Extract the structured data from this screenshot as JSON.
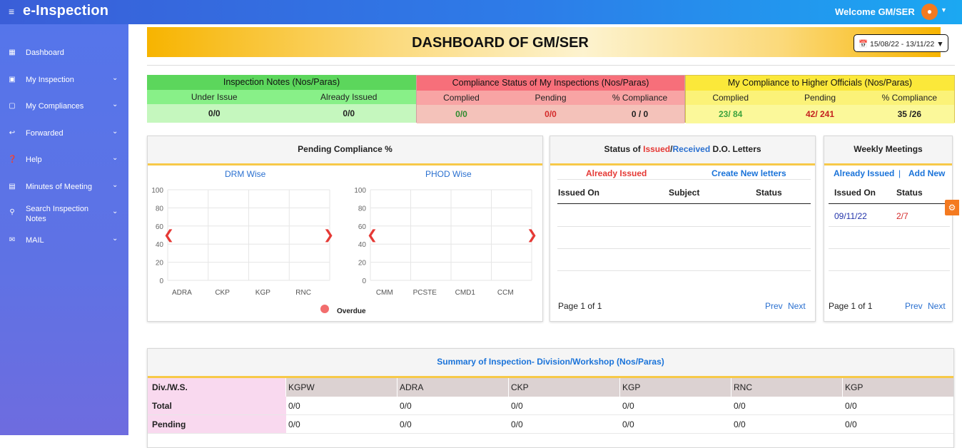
{
  "topbar": {
    "brand": "e-Inspection",
    "welcome": "Welcome  GM/SER"
  },
  "sidebar": {
    "items": [
      {
        "icon": "dashboard-icon",
        "label": "Dashboard"
      },
      {
        "icon": "inspection-icon",
        "label": "My Inspection"
      },
      {
        "icon": "clipboard-icon",
        "label": "My Compliances"
      },
      {
        "icon": "forward-icon",
        "label": "Forwarded"
      },
      {
        "icon": "help-icon",
        "label": "Help"
      },
      {
        "icon": "document-icon",
        "label": "Minutes of Meeting"
      },
      {
        "icon": "search-icon",
        "label": "Search Inspection Notes"
      },
      {
        "icon": "mail-icon",
        "label": "MAIL"
      }
    ]
  },
  "dashboard": {
    "title": "DASHBOARD OF GM/SER",
    "date_range": "15/08/22 - 13/11/22"
  },
  "stats": {
    "inspection_notes": {
      "title": "Inspection Notes (Nos/Paras)",
      "cols": [
        "Under Issue",
        "Already Issued"
      ],
      "values": [
        "0/0",
        "0/0"
      ]
    },
    "compliance_status": {
      "title": "Compliance Status of My Inspections (Nos/Paras)",
      "cols": [
        "Complied",
        "Pending",
        "% Compliance"
      ],
      "values": [
        "0/0",
        "0/0",
        "0 / 0"
      ]
    },
    "my_compliance": {
      "title": "My Compliance to Higher Officials (Nos/Paras)",
      "cols": [
        "Complied",
        "Pending",
        "% Compliance"
      ],
      "values": [
        "23/ 84",
        "42/ 241",
        "35 /26"
      ]
    }
  },
  "pending_chart": {
    "title": "Pending Compliance %",
    "legend": "Overdue"
  },
  "chart_data": [
    {
      "type": "scatter",
      "title": "DRM Wise",
      "categories": [
        "ADRA",
        "CKP",
        "KGP",
        "RNC"
      ],
      "series": [
        {
          "name": "Overdue",
          "values": []
        }
      ],
      "ylim": [
        0,
        100
      ],
      "yticks": [
        0,
        20,
        40,
        60,
        80,
        100
      ],
      "color": "#f26d6d",
      "legend_position": "bottom"
    },
    {
      "type": "scatter",
      "title": "PHOD Wise",
      "categories": [
        "CMM",
        "PCSTE",
        "CMD1",
        "CCM"
      ],
      "series": [
        {
          "name": "Overdue",
          "values": []
        }
      ],
      "ylim": [
        0,
        100
      ],
      "yticks": [
        0,
        20,
        40,
        60,
        80,
        100
      ],
      "color": "#f26d6d",
      "legend_position": "bottom"
    }
  ],
  "do_letters": {
    "title_parts": [
      "Status of ",
      "Issued",
      "/",
      "Received",
      " D.O. Letters"
    ],
    "tab_issued": "Already Issued",
    "tab_create": "Create New letters",
    "headers": [
      "Issued On",
      "Subject",
      "Status"
    ],
    "page": "Page 1 of 1",
    "prev": "Prev",
    "next": "Next"
  },
  "weekly": {
    "title": "Weekly Meetings",
    "tab_issued": "Already Issued",
    "sep": "|",
    "tab_add": "Add New",
    "headers": [
      "Issued On",
      "Status"
    ],
    "rows": [
      {
        "date": "09/11/22",
        "status": "2/7"
      }
    ],
    "page": "Page 1 of 1",
    "prev": "Prev",
    "next": "Next"
  },
  "summary": {
    "title": "Summary of Inspection- Division/Workshop (Nos/Paras)",
    "columns": [
      "Div./W.S.",
      "KGPW",
      "ADRA",
      "CKP",
      "KGP",
      "RNC",
      "KGP"
    ],
    "rows": [
      {
        "label": "Total",
        "values": [
          "0/0",
          "0/0",
          "0/0",
          "0/0",
          "0/0",
          "0/0"
        ]
      },
      {
        "label": "Pending",
        "values": [
          "0/0",
          "0/0",
          "0/0",
          "0/0",
          "0/0",
          "0/0"
        ]
      }
    ]
  }
}
